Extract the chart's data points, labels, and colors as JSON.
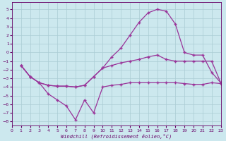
{
  "xlabel": "Windchill (Refroidissement éolien,°C)",
  "background_color": "#cce8ee",
  "grid_color": "#aaccd4",
  "line_color": "#993399",
  "xlim": [
    0,
    23
  ],
  "ylim": [
    -8.5,
    5.8
  ],
  "xticks": [
    0,
    1,
    2,
    3,
    4,
    5,
    6,
    7,
    8,
    9,
    10,
    11,
    12,
    13,
    14,
    15,
    16,
    17,
    18,
    19,
    20,
    21,
    22,
    23
  ],
  "yticks": [
    -8,
    -7,
    -6,
    -5,
    -4,
    -3,
    -2,
    -1,
    0,
    1,
    2,
    3,
    4,
    5
  ],
  "line1_x": [
    1,
    2,
    3,
    4,
    5,
    6,
    7,
    8,
    9,
    10,
    11,
    12,
    13,
    14,
    15,
    16,
    17,
    18,
    19,
    20,
    21,
    22,
    23
  ],
  "line1_y": [
    -1.5,
    -2.8,
    -3.5,
    -3.8,
    -3.9,
    -3.9,
    -4.0,
    -3.8,
    -2.8,
    -1.8,
    -0.5,
    0.5,
    2.0,
    3.5,
    4.6,
    5.0,
    4.8,
    3.3,
    0.0,
    -0.3,
    -0.3,
    -2.3,
    -3.5
  ],
  "line2_x": [
    1,
    2,
    3,
    4,
    5,
    6,
    7,
    8,
    9,
    10,
    11,
    12,
    13,
    14,
    15,
    16,
    17,
    18,
    19,
    20,
    21,
    22,
    23
  ],
  "line2_y": [
    -1.5,
    -2.8,
    -3.5,
    -3.8,
    -3.9,
    -3.9,
    -4.0,
    -3.8,
    -2.8,
    -1.8,
    -1.5,
    -1.2,
    -1.0,
    -0.8,
    -0.5,
    -0.3,
    -0.8,
    -1.0,
    -1.0,
    -1.0,
    -1.0,
    -1.0,
    -3.5
  ],
  "line3_x": [
    1,
    2,
    3,
    4,
    5,
    6,
    7,
    8,
    9,
    10,
    11,
    12,
    13,
    14,
    15,
    16,
    17,
    18,
    19,
    20,
    21,
    22,
    23
  ],
  "line3_y": [
    -1.5,
    -2.8,
    -3.5,
    -4.8,
    -5.5,
    -6.2,
    -7.8,
    -5.5,
    -7.0,
    -4.0,
    -3.8,
    -3.7,
    -3.5,
    -3.5,
    -3.5,
    -3.5,
    -3.5,
    -3.5,
    -3.6,
    -3.7,
    -3.7,
    -3.5,
    -3.6
  ]
}
